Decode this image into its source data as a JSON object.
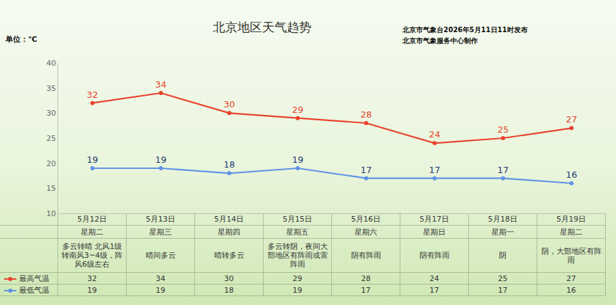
{
  "chart_data": {
    "type": "line",
    "title": "北京地区天气趋势",
    "y_label": "单位：℃",
    "annotations": [
      "北京市气象台2026年5月11日11时发布",
      "北京市气象服务中心制作"
    ],
    "categories": [
      "5月12日",
      "5月13日",
      "5月14日",
      "5月15日",
      "5月16日",
      "5月17日",
      "5月18日",
      "5月19日"
    ],
    "weekdays": [
      "星期二",
      "星期三",
      "星期四",
      "星期五",
      "星期六",
      "星期日",
      "星期一",
      "星期二"
    ],
    "weather": [
      "多云转晴 北风1级转南风3~4级，阵风6级左右",
      "晴间多云",
      "晴转多云",
      "多云转阴，夜间大部地区有阵雨或雷阵雨",
      "阴有阵雨",
      "阴有阵雨",
      "阴",
      "阴，大部地区有阵雨"
    ],
    "series": [
      {
        "name": "最高气温",
        "color": "#e8412c",
        "values": [
          32,
          34,
          30,
          29,
          28,
          24,
          25,
          27
        ]
      },
      {
        "name": "最低气温",
        "color": "#5f93e6",
        "values": [
          19,
          19,
          18,
          19,
          17,
          17,
          17,
          16
        ]
      }
    ],
    "ylim": [
      10,
      40
    ],
    "yticks": [
      10,
      15,
      20,
      25,
      30,
      35,
      40
    ],
    "grid": false,
    "data_labels": true,
    "marker": "circle",
    "tick_labels": "y",
    "legend": "bottom left"
  }
}
